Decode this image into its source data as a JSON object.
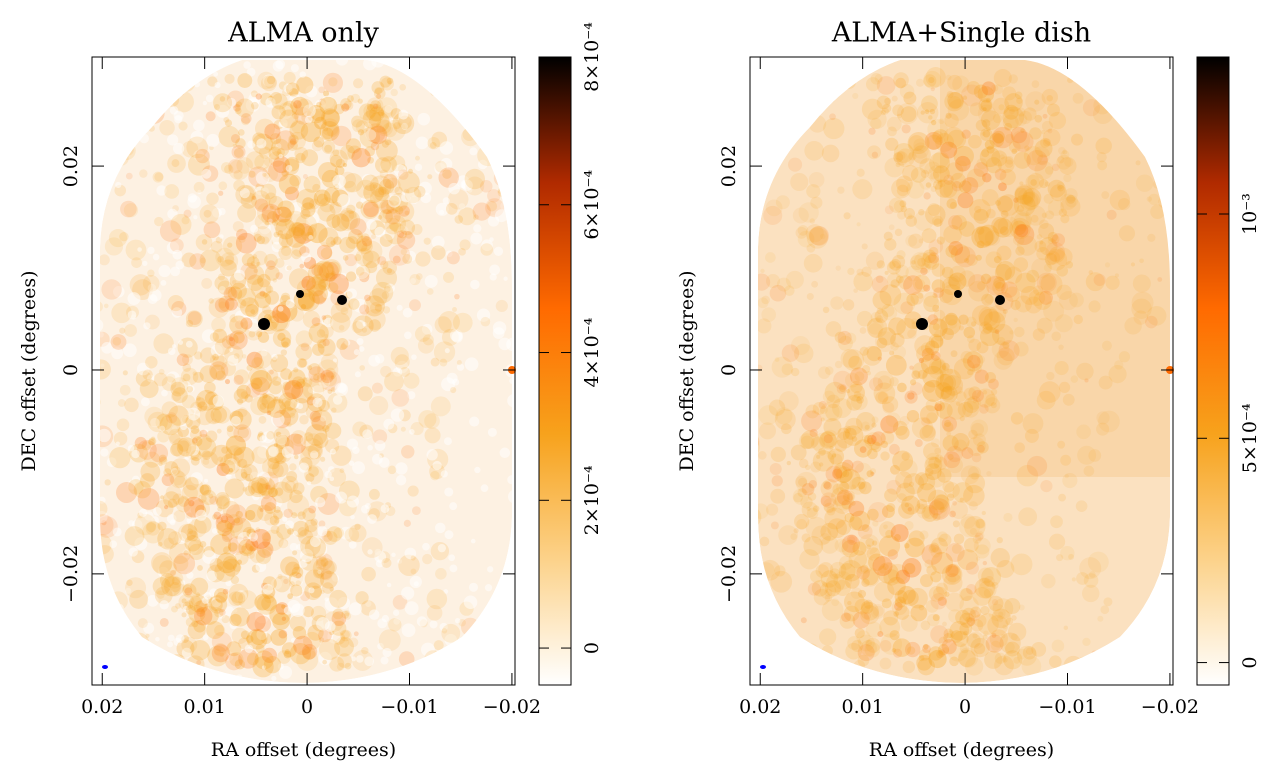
{
  "chart_data": [
    {
      "type": "image",
      "title": "ALMA only",
      "xlabel": "RA offset (degrees)",
      "ylabel": "DEC offset (degrees)",
      "xlim": [
        0.021,
        -0.0203
      ],
      "ylim": [
        -0.0309,
        0.0307
      ],
      "xticks": [
        0.02,
        0.01,
        0,
        {
          "value": -0.01,
          "label": "−0.01"
        },
        {
          "value": -0.02,
          "label": "−0.02"
        }
      ],
      "yticks": [
        {
          "value": -0.02,
          "label": "−0.02"
        },
        0,
        0.02
      ],
      "clim": [
        -5e-05,
        0.0008
      ],
      "cticks": [
        0,
        {
          "value": 0.0002,
          "label": "2×10⁻⁴"
        },
        {
          "value": 0.0004,
          "label": "4×10⁻⁴"
        },
        {
          "value": 0.0006,
          "label": "6×10⁻⁴"
        },
        {
          "value": 0.0008,
          "label": "8×10⁻⁴"
        }
      ],
      "colormap": [
        "#ffffff",
        "#fcd28a",
        "#f7a21c",
        "#ff6a00",
        "#b02a00",
        "#000000"
      ]
    },
    {
      "type": "image",
      "title": "ALMA+Single dish",
      "xlabel": "RA offset (degrees)",
      "ylabel": "DEC offset (degrees)",
      "xlim": [
        0.021,
        -0.0203
      ],
      "ylim": [
        -0.0309,
        0.0307
      ],
      "xticks": [
        0.02,
        0.01,
        0,
        {
          "value": -0.01,
          "label": "−0.01"
        },
        {
          "value": -0.02,
          "label": "−0.02"
        }
      ],
      "yticks": [
        {
          "value": -0.02,
          "label": "−0.02"
        },
        0,
        0.02
      ],
      "clim": [
        -5e-05,
        0.00135
      ],
      "cticks": [
        0,
        {
          "value": 0.0005,
          "label": "5×10⁻⁴"
        },
        {
          "value": 0.001,
          "label": "10⁻³"
        }
      ],
      "colormap": [
        "#ffffff",
        "#fcd28a",
        "#f7a21c",
        "#ff6a00",
        "#b02a00",
        "#000000"
      ]
    }
  ]
}
